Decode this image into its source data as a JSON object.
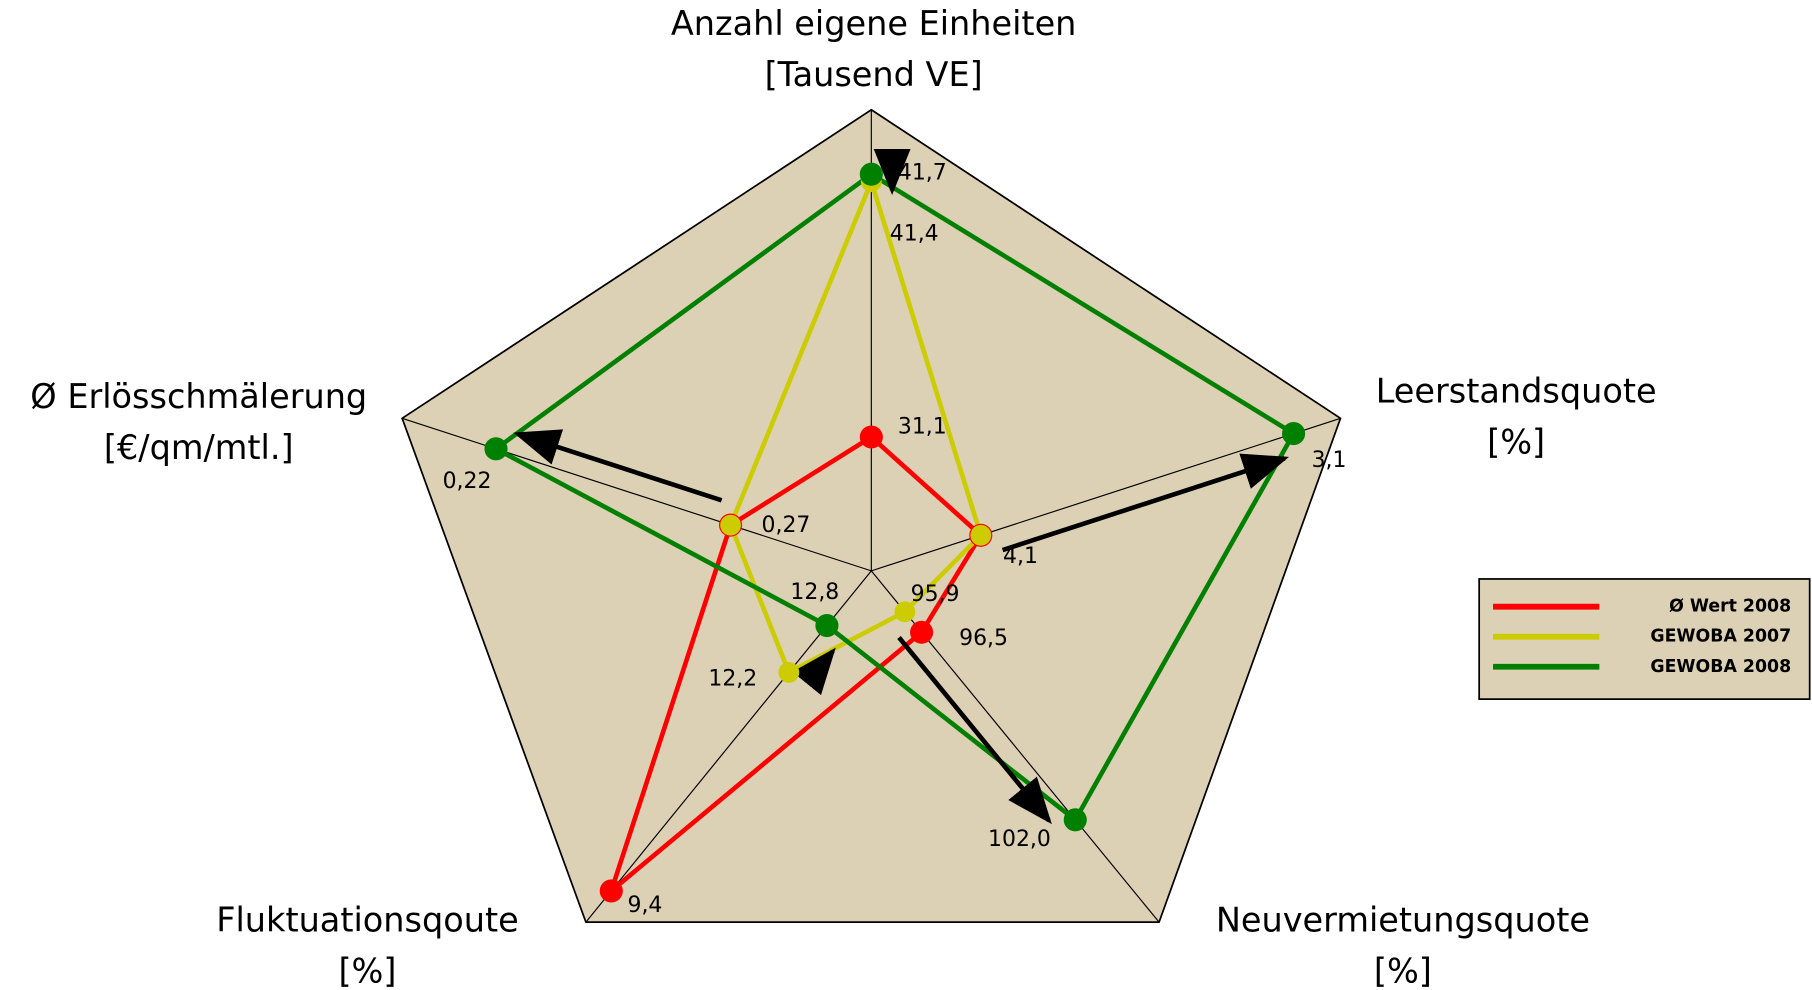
{
  "chart_data": {
    "type": "radar",
    "axes": [
      {
        "name": "Anzahl eigene Einheiten",
        "unit": "[Tausend VE]",
        "lim": [
          25.7,
          44.3
        ]
      },
      {
        "name": "Leerstandsquote",
        "unit": "[%]",
        "lim": [
          4.45,
          2.95
        ]
      },
      {
        "name": "Neuvermietungsquote",
        "unit": "[%]",
        "lim": [
          94.7,
          105
        ]
      },
      {
        "name": "Fluktuationsqoute",
        "unit": "[%]",
        "lim": [
          13.5,
          9
        ]
      },
      {
        "name": "Ø Erlösschmälerung",
        "unit": "[€/qm/mtl.]",
        "lim": [
          0.3,
          0.2
        ]
      }
    ],
    "series": [
      {
        "name": "Ø Wert 2008",
        "color": "#ff0000",
        "values": [
          31.1,
          4.1,
          96.5,
          9.4,
          0.27
        ],
        "value_labels": [
          "31,1",
          "4,1",
          "96,5",
          "9,4",
          "0,27"
        ]
      },
      {
        "name": "GEWOBA 2007",
        "color": "#cccc00",
        "values": [
          41.4,
          4.1,
          95.9,
          12.2,
          0.27
        ],
        "value_labels": [
          "41,4",
          null,
          "95,9",
          "12,2",
          null
        ]
      },
      {
        "name": "GEWOBA 2008",
        "color": "#008000",
        "values": [
          41.7,
          3.1,
          102.0,
          12.8,
          0.22
        ],
        "value_labels": [
          "41,7",
          "3,1",
          "102,0",
          "12,8",
          "0,22"
        ]
      }
    ]
  }
}
